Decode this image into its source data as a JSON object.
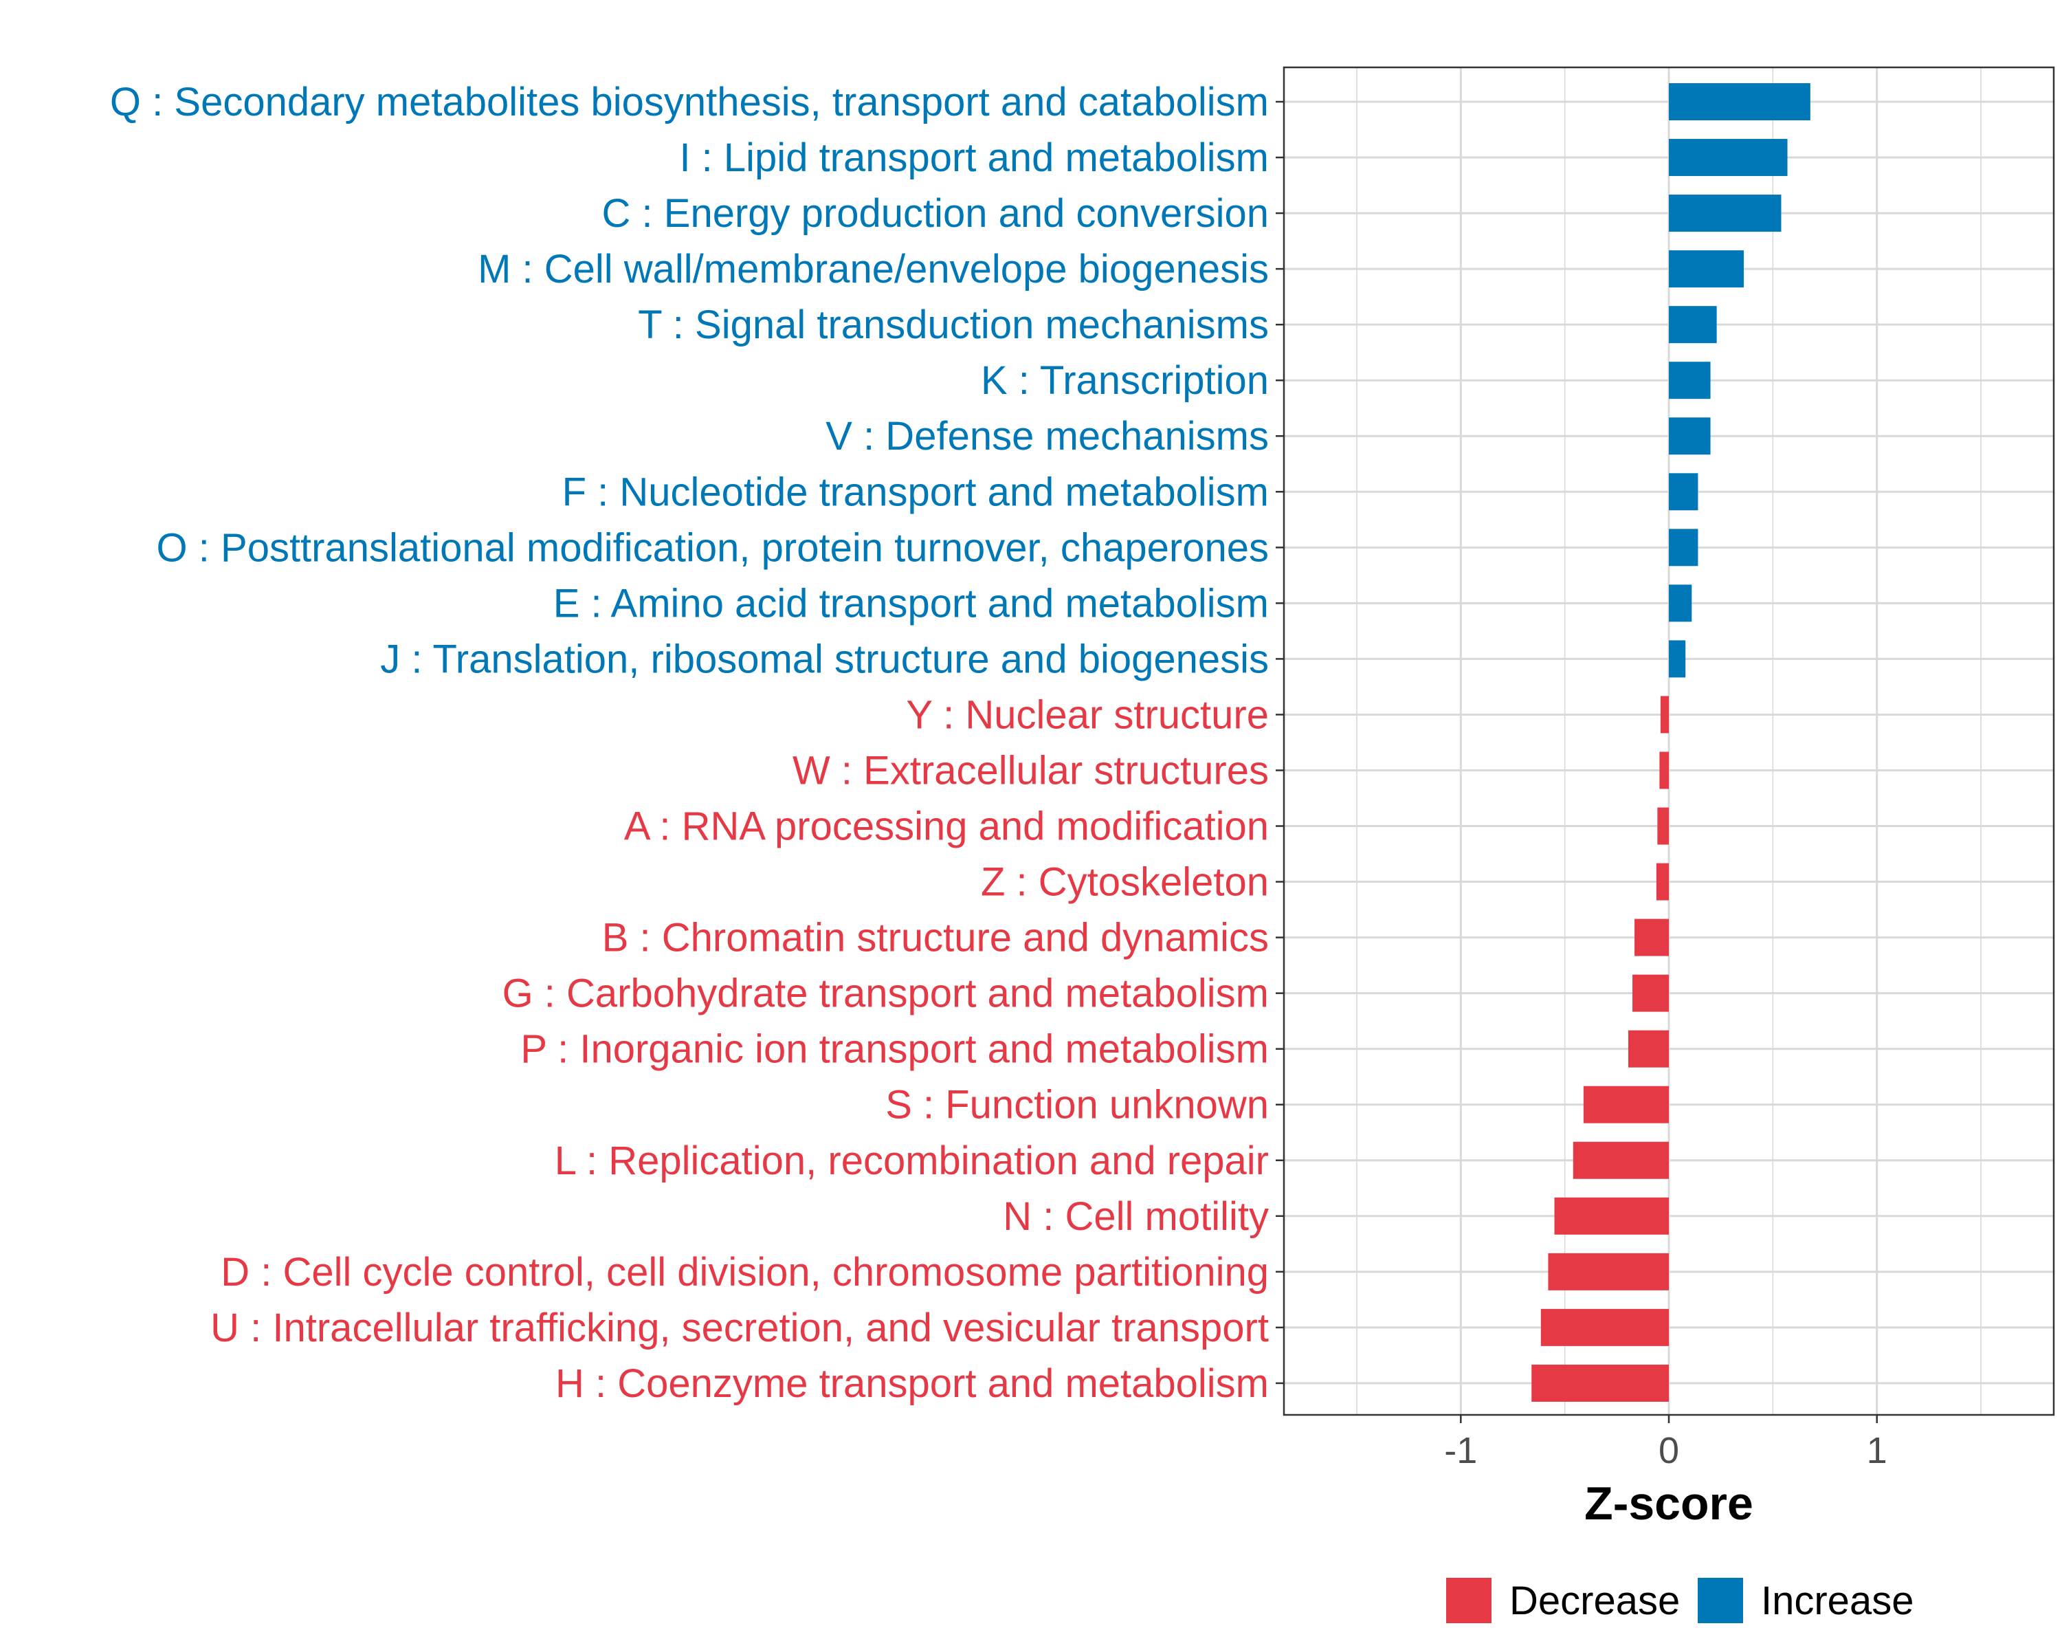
{
  "chart_data": {
    "type": "bar",
    "orientation": "horizontal",
    "xlabel": "Z-score",
    "xlim": [
      -1.85,
      1.85
    ],
    "xticks": [
      -1,
      0,
      1
    ],
    "xtick_labels": [
      "-1",
      "0",
      "1"
    ],
    "grid": true,
    "legend_position": "bottom",
    "colors": {
      "Decrease": "#E63946",
      "Increase": "#0077B6"
    },
    "legend": [
      {
        "label": "Decrease",
        "color": "#E63946"
      },
      {
        "label": "Increase",
        "color": "#0077B6"
      }
    ],
    "categories": [
      "Q : Secondary metabolites biosynthesis, transport and catabolism",
      "I : Lipid transport and metabolism",
      "C : Energy production and conversion",
      "M : Cell wall/membrane/envelope biogenesis",
      "T : Signal transduction mechanisms",
      "K : Transcription",
      "V : Defense mechanisms",
      "F : Nucleotide transport and metabolism",
      "O : Posttranslational modification, protein turnover, chaperones",
      "E : Amino acid transport and metabolism",
      "J : Translation, ribosomal structure and biogenesis",
      "Y : Nuclear structure",
      "W : Extracellular structures",
      "A : RNA processing and modification",
      "Z : Cytoskeleton",
      "B : Chromatin structure and dynamics",
      "G : Carbohydrate transport and metabolism",
      "P : Inorganic ion transport and metabolism",
      "S : Function unknown",
      "L : Replication, recombination and repair",
      "N : Cell motility",
      "D : Cell cycle control, cell division, chromosome partitioning",
      "U : Intracellular trafficking, secretion, and vesicular transport",
      "H : Coenzyme transport and metabolism"
    ],
    "values": [
      0.68,
      0.57,
      0.54,
      0.36,
      0.23,
      0.2,
      0.2,
      0.14,
      0.14,
      0.11,
      0.08,
      -0.04,
      -0.045,
      -0.055,
      -0.06,
      -0.165,
      -0.175,
      -0.195,
      -0.41,
      -0.46,
      -0.55,
      -0.58,
      -0.615,
      -0.66
    ],
    "groups": [
      "Increase",
      "Increase",
      "Increase",
      "Increase",
      "Increase",
      "Increase",
      "Increase",
      "Increase",
      "Increase",
      "Increase",
      "Increase",
      "Decrease",
      "Decrease",
      "Decrease",
      "Decrease",
      "Decrease",
      "Decrease",
      "Decrease",
      "Decrease",
      "Decrease",
      "Decrease",
      "Decrease",
      "Decrease",
      "Decrease"
    ]
  }
}
